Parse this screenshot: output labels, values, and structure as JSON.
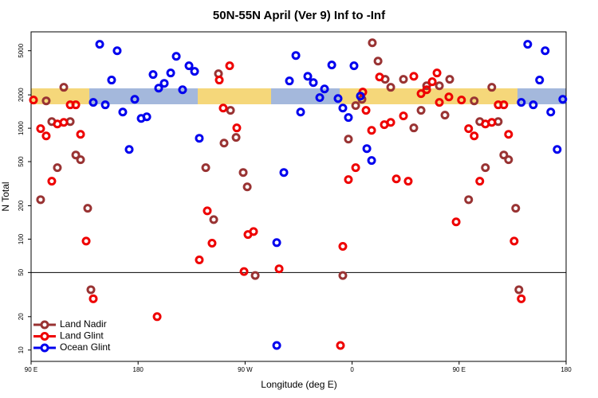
{
  "chart_data": {
    "type": "scatter",
    "title": "50N-55N April (Ver 9)   Inf to -Inf",
    "xlabel": "Longitude (deg E)",
    "ylabel": "N Total",
    "xlim": [
      90,
      540
    ],
    "xticks": [
      {
        "value": 90,
        "label": "90 E"
      },
      180,
      {
        "value": 270,
        "label": "90 W"
      },
      {
        "value": 360,
        "label": "0"
      },
      {
        "value": 450,
        "label": "90 E"
      },
      {
        "value": 540,
        "label": "180"
      }
    ],
    "ylim": [
      7.9,
      7400
    ],
    "yscale": "log",
    "yticks": [
      10,
      20,
      50,
      100,
      200,
      500,
      1000,
      2000,
      5000
    ],
    "reference_line": 50,
    "legend": "lower left",
    "series": [
      {
        "name": "Land Nadir",
        "color": "#993333",
        "x": [
          98,
          102.7,
          107.4,
          112.1,
          117.5,
          122.9,
          127.6,
          131.6,
          137.6,
          140.3,
          236.9,
          243.6,
          247.6,
          252.3,
          257.7,
          262.4,
          268.4,
          271.8,
          278.5,
          352.2,
          356.9,
          363,
          368.3,
          377,
          381.8,
          387.8,
          392.5,
          403.2,
          411.9,
          418,
          422.7,
          433.4,
          438.1,
          442.1,
          458,
          462.7,
          467.4,
          472.1,
          477.5,
          482.9,
          487.6,
          491.6,
          497.6,
          500.3
        ],
        "values": [
          227,
          1766,
          1148,
          441,
          2339,
          1148,
          574,
          520,
          190,
          35,
          441,
          150,
          3100,
          735,
          1449,
          826,
          399,
          296,
          47,
          47,
          798,
          1600,
          1824,
          5900,
          4034,
          2762,
          2339,
          2762,
          1007,
          1449,
          2415,
          2415,
          1313,
          2762,
          227,
          1766,
          1148,
          441,
          2339,
          1148,
          574,
          520,
          190,
          35
        ]
      },
      {
        "name": "Land Glint",
        "color": "#ee0000",
        "x": [
          92,
          98,
          102.7,
          107.4,
          112.1,
          117.5,
          122.9,
          127.6,
          131.6,
          136.3,
          142.3,
          196,
          231.5,
          238.2,
          242.2,
          248.3,
          251.6,
          257,
          263,
          269.1,
          272.4,
          277.1,
          298.6,
          350.2,
          352.2,
          356.9,
          363,
          369,
          371.7,
          376.4,
          383.1,
          387.1,
          392.5,
          397.2,
          403.2,
          407.2,
          411.9,
          418,
          422.7,
          427.4,
          431.4,
          433.4,
          441.4,
          447.5,
          452,
          458,
          462.7,
          467.4,
          472.1,
          477.5,
          482.9,
          487.6,
          491.6,
          496.3,
          502.3
        ],
        "values": [
          1796,
          991,
          853,
          333,
          1093,
          1130,
          1626,
          1626,
          881,
          96,
          29,
          20,
          65,
          180,
          92,
          2720,
          1520,
          3660,
          1007,
          51,
          110,
          117,
          54,
          11,
          86,
          344,
          441,
          2120,
          1449,
          957,
          2896,
          1076,
          1130,
          349,
          1292,
          333,
          2940,
          2050,
          2223,
          2626,
          3150,
          1710,
          1916,
          143,
          1796,
          991,
          853,
          333,
          1093,
          1130,
          1626,
          1626,
          881,
          96,
          29
        ]
      },
      {
        "name": "Ocean Glint",
        "color": "#0000ee",
        "x": [
          142.3,
          147.7,
          152.4,
          157.7,
          162.4,
          167.1,
          172.5,
          177.2,
          182.6,
          187.3,
          192.6,
          197.3,
          202,
          207.4,
          212.1,
          217.4,
          222.8,
          227.5,
          231.5,
          296.6,
          296.6,
          302.6,
          307.3,
          312.7,
          316.7,
          322.7,
          327.4,
          332.8,
          336.8,
          342.9,
          348.2,
          352.2,
          356.9,
          361.6,
          367,
          372.4,
          376.4,
          502.3,
          507.7,
          512.4,
          517.7,
          522.4,
          527.1,
          532.5,
          537.2
        ],
        "values": [
          1710,
          5720,
          1626,
          2720,
          5000,
          1400,
          644,
          1824,
          1227,
          1268,
          3050,
          2300,
          2540,
          3150,
          4450,
          2223,
          3660,
          3260,
          812,
          11,
          93,
          399,
          2670,
          4530,
          1400,
          2940,
          2580,
          1890,
          2260,
          3720,
          1855,
          1520,
          1250,
          3660,
          1950,
          655,
          512,
          1710,
          5720,
          1626,
          2720,
          5000,
          1400,
          644,
          1824
        ]
      }
    ]
  }
}
